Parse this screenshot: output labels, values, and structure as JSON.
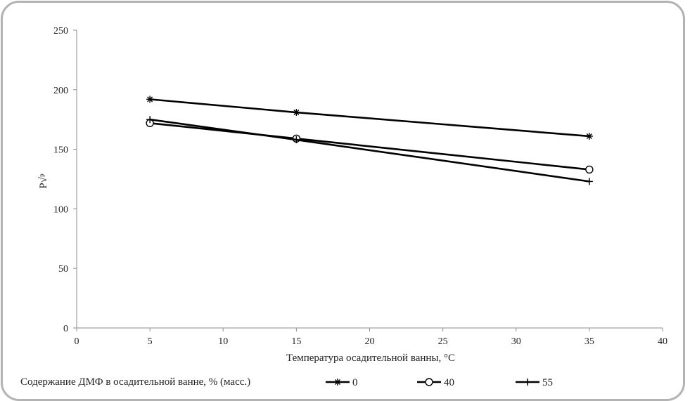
{
  "chart_data": {
    "type": "line",
    "title": "",
    "xlabel": "Температура осадительной ванны, °С",
    "ylabel": "P√ᵖ",
    "xlim": [
      0,
      40
    ],
    "ylim": [
      0,
      250
    ],
    "x_ticks": [
      0,
      5,
      10,
      15,
      20,
      25,
      30,
      35,
      40
    ],
    "y_ticks": [
      0,
      50,
      100,
      150,
      200,
      250
    ],
    "grid": false,
    "legend_title": "Содержание ДМФ в осадительной ванне, % (масс.)",
    "legend_position": "bottom",
    "series": [
      {
        "name": "0",
        "marker": "asterisk",
        "x": [
          5,
          15,
          35
        ],
        "y": [
          192,
          181,
          161
        ]
      },
      {
        "name": "40",
        "marker": "circle",
        "x": [
          5,
          15,
          35
        ],
        "y": [
          172,
          159,
          133
        ]
      },
      {
        "name": "55",
        "marker": "plus",
        "x": [
          5,
          15,
          35
        ],
        "y": [
          175,
          158,
          123
        ]
      }
    ],
    "line_color": "#000000"
  }
}
